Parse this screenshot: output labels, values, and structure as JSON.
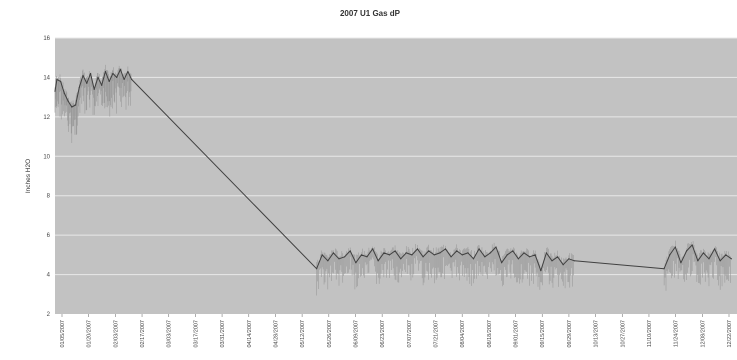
{
  "chart_data": {
    "type": "line",
    "title": "2007 U1 Gas dP",
    "xlabel": "",
    "ylabel": "Inches H2O",
    "ylim": [
      2,
      16
    ],
    "yticks": [
      2,
      4,
      6,
      8,
      10,
      12,
      14,
      16
    ],
    "xtick_labels": [
      "01/05/2007",
      "01/20/2007",
      "02/03/2007",
      "02/17/2007",
      "03/03/2007",
      "03/17/2007",
      "03/31/2007",
      "04/14/2007",
      "04/28/2007",
      "05/12/2007",
      "05/26/2007",
      "06/09/2007",
      "06/23/2007",
      "07/07/2007",
      "07/21/2007",
      "08/04/2007",
      "08/18/2007",
      "09/01/2007",
      "09/15/2007",
      "09/29/2007",
      "10/13/2007",
      "10/27/2007",
      "11/10/2007",
      "11/24/2007",
      "12/08/2007",
      "12/22/2007"
    ],
    "grid": true,
    "legend": "none",
    "series": [
      {
        "color": "#555555",
        "points": [
          [
            "2007-01-01",
            13.3
          ],
          [
            "2007-01-02",
            13.9
          ],
          [
            "2007-01-04",
            13.8
          ],
          [
            "2007-01-06",
            13.2
          ],
          [
            "2007-01-08",
            12.8
          ],
          [
            "2007-01-10",
            12.5
          ],
          [
            "2007-01-12",
            12.6
          ],
          [
            "2007-01-14",
            13.5
          ],
          [
            "2007-01-16",
            14.1
          ],
          [
            "2007-01-18",
            13.7
          ],
          [
            "2007-01-20",
            14.2
          ],
          [
            "2007-01-22",
            13.4
          ],
          [
            "2007-01-24",
            14.0
          ],
          [
            "2007-01-26",
            13.6
          ],
          [
            "2007-01-28",
            14.3
          ],
          [
            "2007-01-30",
            13.8
          ],
          [
            "2007-02-01",
            14.2
          ],
          [
            "2007-02-03",
            14.0
          ],
          [
            "2007-02-05",
            14.4
          ],
          [
            "2007-02-07",
            13.9
          ],
          [
            "2007-02-09",
            14.3
          ],
          [
            "2007-02-11",
            13.9
          ],
          [
            "2007-05-21",
            4.3
          ],
          [
            "2007-05-24",
            5.0
          ],
          [
            "2007-05-27",
            4.7
          ],
          [
            "2007-05-30",
            5.1
          ],
          [
            "2007-06-02",
            4.8
          ],
          [
            "2007-06-05",
            4.9
          ],
          [
            "2007-06-08",
            5.2
          ],
          [
            "2007-06-11",
            4.6
          ],
          [
            "2007-06-14",
            5.0
          ],
          [
            "2007-06-17",
            4.9
          ],
          [
            "2007-06-20",
            5.3
          ],
          [
            "2007-06-23",
            4.7
          ],
          [
            "2007-06-26",
            5.1
          ],
          [
            "2007-06-29",
            5.0
          ],
          [
            "2007-07-02",
            5.2
          ],
          [
            "2007-07-05",
            4.8
          ],
          [
            "2007-07-08",
            5.1
          ],
          [
            "2007-07-11",
            5.0
          ],
          [
            "2007-07-14",
            5.3
          ],
          [
            "2007-07-17",
            4.9
          ],
          [
            "2007-07-20",
            5.2
          ],
          [
            "2007-07-23",
            5.0
          ],
          [
            "2007-07-26",
            5.1
          ],
          [
            "2007-07-29",
            5.3
          ],
          [
            "2007-08-01",
            4.9
          ],
          [
            "2007-08-04",
            5.2
          ],
          [
            "2007-08-07",
            5.0
          ],
          [
            "2007-08-10",
            5.1
          ],
          [
            "2007-08-13",
            4.8
          ],
          [
            "2007-08-16",
            5.3
          ],
          [
            "2007-08-19",
            4.9
          ],
          [
            "2007-08-22",
            5.1
          ],
          [
            "2007-08-25",
            5.4
          ],
          [
            "2007-08-28",
            4.6
          ],
          [
            "2007-08-31",
            5.0
          ],
          [
            "2007-09-03",
            5.2
          ],
          [
            "2007-09-06",
            4.8
          ],
          [
            "2007-09-09",
            5.1
          ],
          [
            "2007-09-12",
            4.9
          ],
          [
            "2007-09-15",
            5.0
          ],
          [
            "2007-09-18",
            4.2
          ],
          [
            "2007-09-21",
            5.1
          ],
          [
            "2007-09-24",
            4.7
          ],
          [
            "2007-09-27",
            4.9
          ],
          [
            "2007-09-30",
            4.5
          ],
          [
            "2007-10-03",
            4.8
          ],
          [
            "2007-10-06",
            4.7
          ],
          [
            "2007-11-23",
            4.3
          ],
          [
            "2007-11-26",
            5.0
          ],
          [
            "2007-11-29",
            5.4
          ],
          [
            "2007-12-02",
            4.6
          ],
          [
            "2007-12-05",
            5.2
          ],
          [
            "2007-12-08",
            5.5
          ],
          [
            "2007-12-11",
            4.7
          ],
          [
            "2007-12-14",
            5.1
          ],
          [
            "2007-12-17",
            4.8
          ],
          [
            "2007-12-20",
            5.3
          ],
          [
            "2007-12-23",
            4.7
          ],
          [
            "2007-12-26",
            5.0
          ],
          [
            "2007-12-29",
            4.8
          ]
        ]
      }
    ]
  },
  "colors": {
    "plot_background": "#c2c2c2",
    "gridline": "#e8e8e8",
    "trace_dark": "#404040",
    "trace_light": "#9a9a9a"
  }
}
